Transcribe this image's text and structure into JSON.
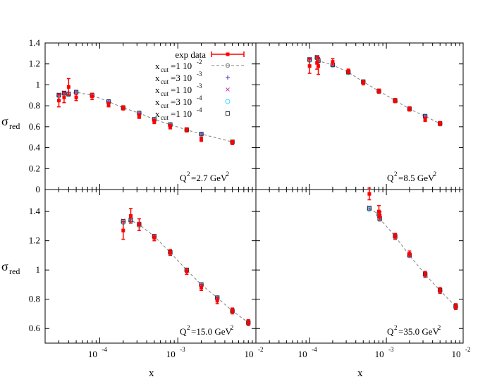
{
  "figure": {
    "ylabel": "σ",
    "ylabel_sub": "red",
    "xlabel": "x",
    "xtick_base": "10",
    "xtick_exponents": [
      "-4",
      "-3",
      "-2"
    ],
    "legend": {
      "exp_label": "exp data",
      "entry_prefix": "x",
      "entry_sub": "cut",
      "entries": [
        {
          "mantissa": "=1 10",
          "exp": "-2",
          "color": "#808080",
          "marker": "circle"
        },
        {
          "mantissa": "=3 10",
          "exp": "-3",
          "color": "#3a3ad0",
          "marker": "plus"
        },
        {
          "mantissa": "=1 10",
          "exp": "-3",
          "color": "#c040c0",
          "marker": "cross"
        },
        {
          "mantissa": "=3 10",
          "exp": "-4",
          "color": "#33ddff",
          "marker": "diamond"
        },
        {
          "mantissa": "=1 10",
          "exp": "-4",
          "color": "#333333",
          "marker": "square"
        }
      ]
    },
    "colors": {
      "exp": "#ff0000",
      "line": "#808080"
    }
  },
  "chart_data": [
    {
      "type": "scatter",
      "panel": "top-left",
      "q2_label": "Q",
      "q2_value": "=2.7 GeV",
      "xlim": [
        2e-05,
        0.01
      ],
      "xscale": "log",
      "ylim": [
        0,
        1.4
      ],
      "yticks": [
        "0",
        "0.2",
        "0.4",
        "0.6",
        "0.8",
        "1",
        "1.2",
        "1.4"
      ],
      "x": [
        3e-05,
        3.5e-05,
        4e-05,
        5e-05,
        8e-05,
        0.00013,
        0.0002,
        0.00032,
        0.0005,
        0.0008,
        0.0013,
        0.002,
        0.005
      ],
      "exp": [
        0.85,
        0.88,
        0.98,
        0.88,
        0.89,
        0.81,
        0.78,
        0.7,
        0.65,
        0.6,
        0.57,
        0.48,
        0.45
      ],
      "exp_err": [
        0.06,
        0.05,
        0.08,
        0.03,
        0.03,
        0.02,
        0.02,
        0.02,
        0.02,
        0.02,
        0.02,
        0.02,
        0.02
      ],
      "theory": [
        0.9,
        0.92,
        0.91,
        0.93,
        0.9,
        0.84,
        0.78,
        0.73,
        0.67,
        0.62,
        0.57,
        0.53,
        0.455
      ]
    },
    {
      "type": "scatter",
      "panel": "top-right",
      "q2_label": "Q",
      "q2_value": "=8.5 GeV",
      "xlim": [
        2e-05,
        0.01
      ],
      "xscale": "log",
      "ylim": [
        0,
        1.4
      ],
      "yticks": [],
      "x": [
        0.0001,
        0.000125,
        0.00013,
        0.0002,
        0.00032,
        0.0005,
        0.0008,
        0.0013,
        0.002,
        0.0032,
        0.005
      ],
      "exp": [
        1.18,
        1.21,
        1.18,
        1.22,
        1.13,
        1.02,
        0.94,
        0.85,
        0.77,
        0.67,
        0.63
      ],
      "exp_err": [
        0.07,
        0.06,
        0.08,
        0.03,
        0.02,
        0.02,
        0.02,
        0.02,
        0.02,
        0.02,
        0.02
      ],
      "theory": [
        1.24,
        1.26,
        1.23,
        1.19,
        1.12,
        1.03,
        0.94,
        0.85,
        0.77,
        0.7,
        0.63
      ]
    },
    {
      "type": "scatter",
      "panel": "bottom-left",
      "q2_label": "Q",
      "q2_value": "=15.0 GeV",
      "xlim": [
        2e-05,
        0.01
      ],
      "xscale": "log",
      "ylim": [
        0.5,
        1.55
      ],
      "yticks": [
        "0.6",
        "0.8",
        "1",
        "1.2",
        "1.4"
      ],
      "x": [
        0.0002,
        0.00025,
        0.00032,
        0.0005,
        0.0008,
        0.0013,
        0.002,
        0.0032,
        0.005,
        0.008
      ],
      "exp": [
        1.27,
        1.37,
        1.31,
        1.22,
        1.12,
        0.99,
        0.88,
        0.79,
        0.72,
        0.64
      ],
      "exp_err": [
        0.06,
        0.05,
        0.04,
        0.02,
        0.02,
        0.02,
        0.02,
        0.02,
        0.02,
        0.02
      ],
      "theory": [
        1.33,
        1.34,
        1.31,
        1.23,
        1.12,
        1.0,
        0.9,
        0.81,
        0.72,
        0.64
      ]
    },
    {
      "type": "scatter",
      "panel": "bottom-right",
      "q2_label": "Q",
      "q2_value": "=35.0 GeV",
      "xlim": [
        2e-05,
        0.01
      ],
      "xscale": "log",
      "ylim": [
        0.5,
        1.55
      ],
      "yticks": [],
      "x": [
        0.0006,
        0.0008,
        0.00082,
        0.0013,
        0.002,
        0.0032,
        0.005,
        0.008
      ],
      "exp": [
        1.52,
        1.4,
        1.37,
        1.23,
        1.11,
        0.97,
        0.86,
        0.75
      ],
      "exp_err": [
        0.04,
        0.04,
        0.03,
        0.02,
        0.02,
        0.02,
        0.02,
        0.02
      ],
      "theory": [
        1.42,
        1.38,
        1.35,
        1.23,
        1.1,
        0.97,
        0.86,
        0.75
      ]
    }
  ]
}
